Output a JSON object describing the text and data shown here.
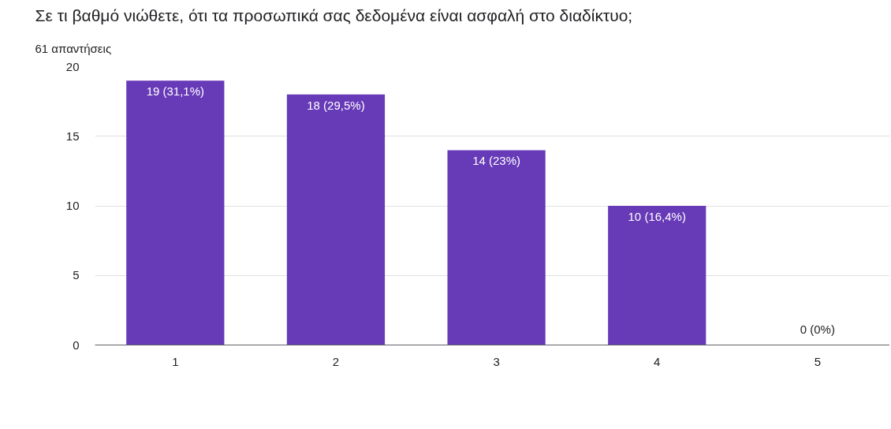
{
  "chart_data": {
    "type": "bar",
    "title": "Σε τι βαθμό νιώθετε, ότι τα προσωπικά σας δεδομένα είναι ασφαλή στο διαδίκτυο;",
    "subtitle": "61 απαντήσεις",
    "categories": [
      "1",
      "2",
      "3",
      "4",
      "5"
    ],
    "values": [
      19,
      18,
      14,
      10,
      0
    ],
    "value_labels": [
      "19 (31,1%)",
      "18 (29,5%)",
      "14 (23%)",
      "10 (16,4%)",
      "0 (0%)"
    ],
    "color": "#673ab7",
    "ylim": [
      0,
      20
    ],
    "yticks": [
      0,
      5,
      10,
      15,
      20
    ],
    "grid": "y"
  }
}
